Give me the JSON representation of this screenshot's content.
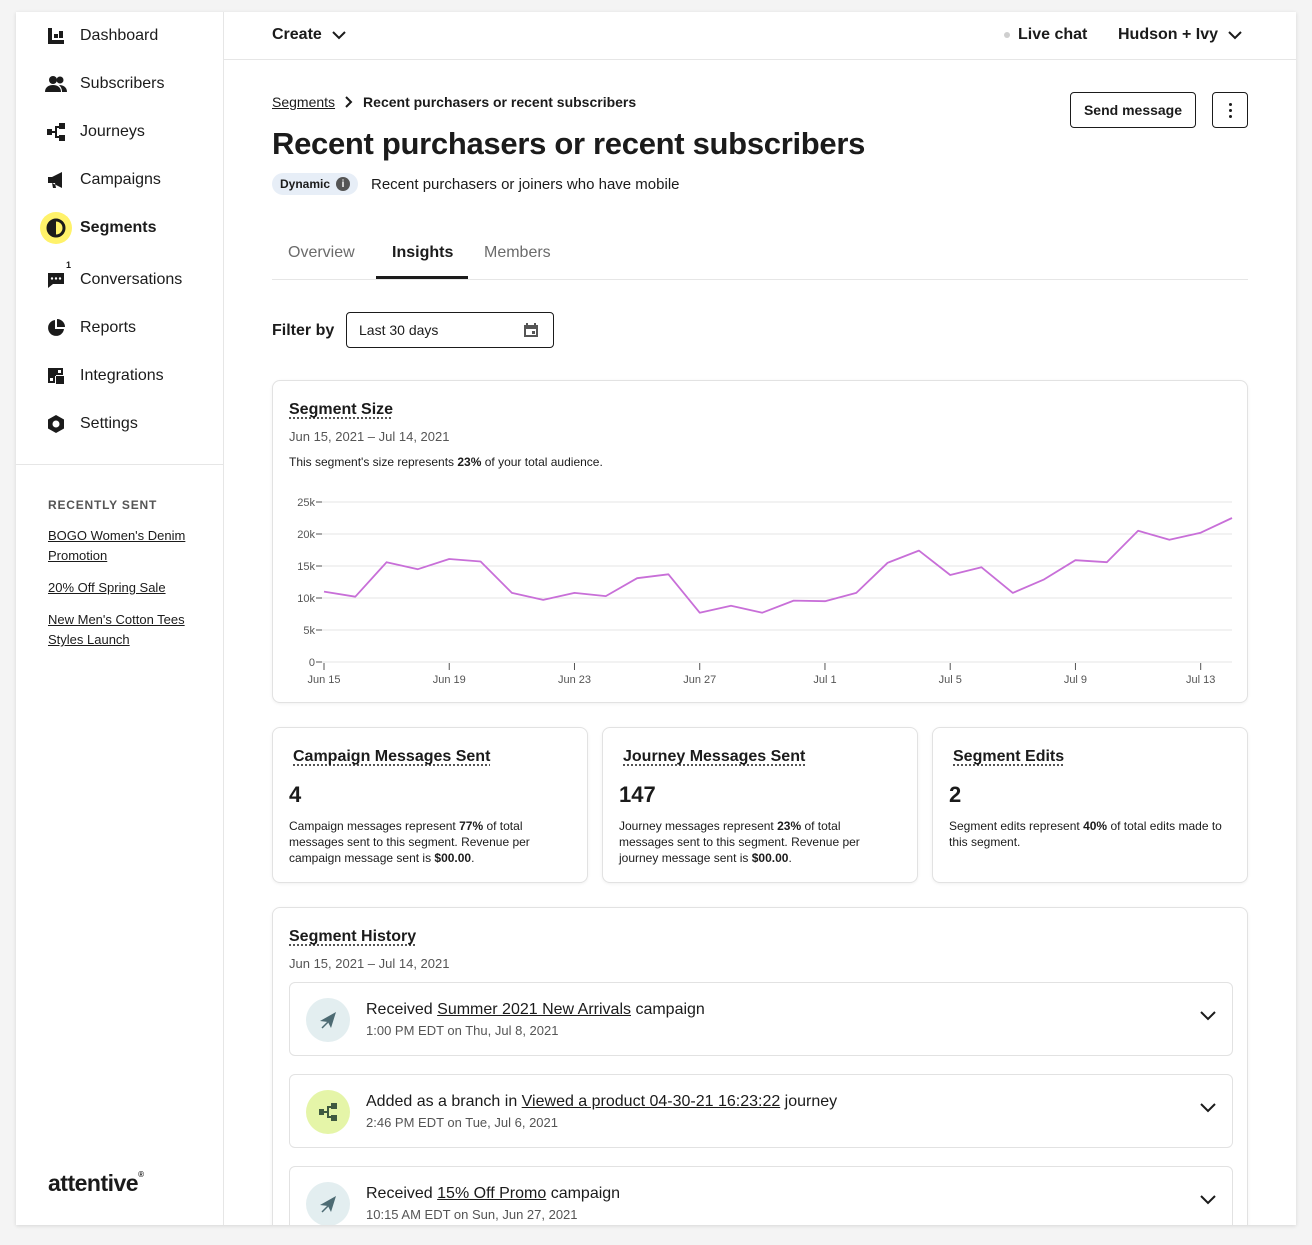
{
  "sidebar": {
    "items": [
      {
        "label": "Dashboard",
        "icon": "dashboard-icon"
      },
      {
        "label": "Subscribers",
        "icon": "subscribers-icon"
      },
      {
        "label": "Journeys",
        "icon": "journeys-icon"
      },
      {
        "label": "Campaigns",
        "icon": "megaphone-icon"
      },
      {
        "label": "Segments",
        "icon": "segments-icon",
        "active": true
      },
      {
        "label": "Conversations",
        "icon": "chat-icon",
        "badge": "1"
      },
      {
        "label": "Reports",
        "icon": "pie-chart-icon"
      },
      {
        "label": "Integrations",
        "icon": "integrations-icon"
      },
      {
        "label": "Settings",
        "icon": "settings-icon"
      }
    ],
    "recent_title": "RECENTLY SENT",
    "recent": [
      "BOGO Women's Denim Promotion",
      "20% Off Spring Sale",
      "New Men's Cotton Tees Styles Launch"
    ],
    "logo": "attentive"
  },
  "topbar": {
    "create": "Create",
    "live_chat": "Live chat",
    "account": "Hudson + Ivy"
  },
  "breadcrumb": {
    "parent": "Segments",
    "current": "Recent purchasers or recent subscribers"
  },
  "page": {
    "title": "Recent purchasers or recent subscribers",
    "pill": "Dynamic",
    "description": "Recent purchasers or joiners who have mobile",
    "send_label": "Send message"
  },
  "tabs": [
    "Overview",
    "Insights",
    "Members"
  ],
  "filter": {
    "label": "Filter by",
    "value": "Last 30 days"
  },
  "segment_size": {
    "title": "Segment Size",
    "date_range": "Jun 15, 2021 – Jul 14, 2021",
    "note_pre": "This segment's size represents ",
    "note_pct": "23%",
    "note_post": " of your total audience."
  },
  "chart_data": {
    "type": "line",
    "ylim": [
      0,
      25000
    ],
    "y_ticks": [
      0,
      5000,
      10000,
      15000,
      20000,
      25000
    ],
    "y_tick_labels": [
      "0",
      "5k",
      "10k",
      "15k",
      "20k",
      "25k"
    ],
    "x_tick_labels": [
      "Jun 15",
      "Jun 19",
      "Jun 23",
      "Jun 27",
      "Jul 1",
      "Jul 5",
      "Jul 9",
      "Jul 13"
    ],
    "x_tick_index": [
      0,
      4,
      8,
      12,
      16,
      20,
      24,
      28
    ],
    "x": [
      "Jun 15",
      "Jun 16",
      "Jun 17",
      "Jun 18",
      "Jun 19",
      "Jun 20",
      "Jun 21",
      "Jun 22",
      "Jun 23",
      "Jun 24",
      "Jun 25",
      "Jun 26",
      "Jun 27",
      "Jun 28",
      "Jun 29",
      "Jun 30",
      "Jul 1",
      "Jul 2",
      "Jul 3",
      "Jul 4",
      "Jul 5",
      "Jul 6",
      "Jul 7",
      "Jul 8",
      "Jul 9",
      "Jul 10",
      "Jul 11",
      "Jul 12",
      "Jul 13",
      "Jul 14"
    ],
    "series": [
      {
        "values": [
          11000,
          10200,
          15600,
          14500,
          16100,
          15700,
          10800,
          9700,
          10800,
          10300,
          13100,
          13700,
          7700,
          8800,
          7700,
          9600,
          9500,
          10800,
          15500,
          17400,
          13600,
          14800,
          10800,
          12900,
          15900,
          15600,
          20500,
          19100,
          20200,
          22500
        ],
        "color": "#c86fd8"
      }
    ],
    "grid": true
  },
  "stats": [
    {
      "title": "Campaign Messages Sent",
      "value": "4",
      "text_a": "Campaign messages represent ",
      "pct": "77%",
      "text_b": " of total messages sent to this segment. Revenue per campaign message sent is ",
      "revenue": "$00.00",
      "text_c": "."
    },
    {
      "title": "Journey Messages Sent",
      "value": "147",
      "text_a": "Journey messages represent ",
      "pct": "23%",
      "text_b": " of total messages sent to this segment. Revenue per journey message sent is ",
      "revenue": "$00.00",
      "text_c": "."
    },
    {
      "title": "Segment Edits",
      "value": "2",
      "text_a": "Segment edits represent ",
      "pct": "40%",
      "text_b": " of total edits made to this segment.",
      "revenue": "",
      "text_c": ""
    }
  ],
  "history": {
    "title": "Segment History",
    "date_range": "Jun 15, 2021 – Jul 14, 2021",
    "items": [
      {
        "pre": "Received ",
        "link": "Summer 2021 New Arrivals",
        "post": " campaign",
        "time": "1:00 PM EDT on Thu, Jul 8, 2021",
        "icon": "paper-plane-icon",
        "color": "#e3eef0"
      },
      {
        "pre": "Added as a branch in ",
        "link": "Viewed a product 04-30-21 16:23:22",
        "post": " journey",
        "time": "2:46 PM EDT on Tue, Jul 6, 2021",
        "icon": "journey-branch-icon",
        "color": "#e5f5a8"
      },
      {
        "pre": "Received ",
        "link": "15% Off Promo",
        "post": " campaign",
        "time": "10:15 AM EDT on Sun, Jun 27, 2021",
        "icon": "paper-plane-icon",
        "color": "#e3eef0"
      }
    ]
  }
}
